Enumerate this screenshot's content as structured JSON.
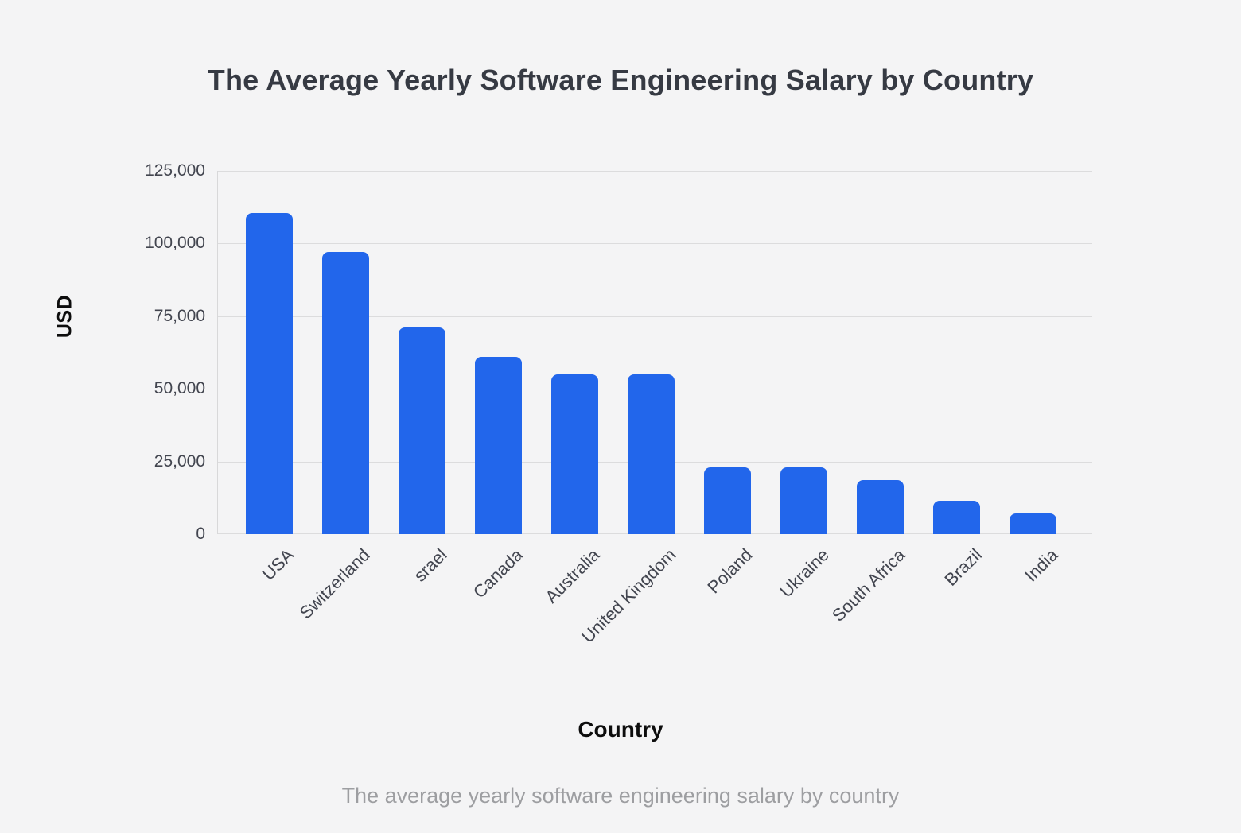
{
  "chart_data": {
    "type": "bar",
    "title": "The Average Yearly Software Engineering Salary by Country",
    "categories": [
      "USA",
      "Switzerland",
      "srael",
      "Canada",
      "Australia",
      "United Kingdom",
      "Poland",
      "Ukraine",
      "South Africa",
      "Brazil",
      "India"
    ],
    "values": [
      110500,
      97000,
      71000,
      61000,
      55000,
      55000,
      23000,
      23000,
      18500,
      11500,
      7000
    ],
    "xlabel": "Country",
    "ylabel": "USD",
    "ylim": [
      0,
      125000
    ],
    "yticks": [
      0,
      25000,
      50000,
      75000,
      100000,
      125000
    ],
    "ytick_labels": [
      "0",
      "25,000",
      "50,000",
      "75,000",
      "100,000",
      "125,000"
    ],
    "caption": "The average yearly software engineering salary by country",
    "grid": true,
    "legend": false,
    "colors": {
      "bar": "#2266eb",
      "background": "#f4f4f5",
      "gridline": "#dcdcdd",
      "title_text": "#363a43",
      "tick_text": "#42454f",
      "axis_label_text": "#0d0d0d",
      "caption_text": "#9d9ea1"
    }
  }
}
